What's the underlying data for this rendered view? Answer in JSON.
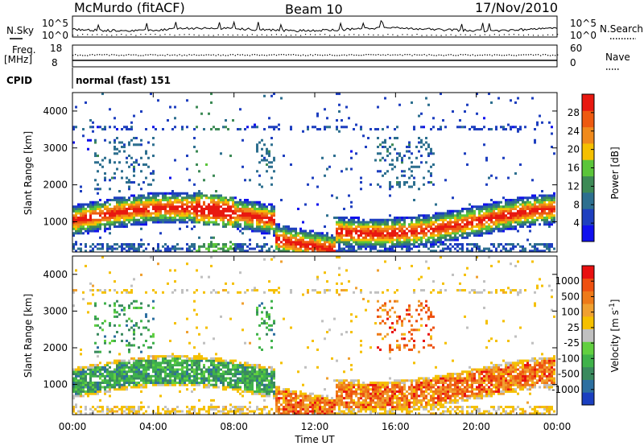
{
  "header": {
    "station": "McMurdo (fitACF)",
    "beam": "Beam 10",
    "date": "17/Nov/2010"
  },
  "top_panels": {
    "nsky_label": "N.Sky",
    "nsearch_label": "N.Search",
    "freq_label_1": "Freq.",
    "freq_label_2": "[MHz]",
    "nave_label": "Nave",
    "cpid_label": "CPID",
    "cpid_value": "normal (fast) 151",
    "noise_ticks": [
      "10^5",
      "10^0"
    ],
    "noise_right_ticks": [
      "10^5",
      "10^0"
    ],
    "freq_ticks": [
      "18",
      "8"
    ],
    "nave_ticks": [
      "60",
      "0"
    ]
  },
  "chart_data": [
    {
      "type": "heatmap",
      "name": "power",
      "ylabel": "Slant Range [km]",
      "xlabel": "Time UT",
      "ylim": [
        180,
        4500
      ],
      "yticks": [
        "1000",
        "2000",
        "3000",
        "4000"
      ],
      "xticks": [
        "00:00",
        "04:00",
        "08:00",
        "12:00",
        "16:00",
        "20:00",
        "00:00"
      ],
      "colorbar_label": "Power [dB]",
      "colorbar_ticks": [
        "28",
        "24",
        "20",
        "16",
        "12",
        "8",
        "4"
      ],
      "colors": [
        "#1010ee",
        "#1e3fbf",
        "#2d6f8f",
        "#3d8a56",
        "#5bc53a",
        "#f5c000",
        "#f08a1c",
        "#ee5a10",
        "#e81810"
      ]
    },
    {
      "type": "heatmap",
      "name": "velocity",
      "ylabel": "Slant Range [km]",
      "xlabel": "Time UT",
      "ylim": [
        180,
        4500
      ],
      "yticks": [
        "1000",
        "2000",
        "3000",
        "4000"
      ],
      "xticks": [
        "00:00",
        "04:00",
        "08:00",
        "12:00",
        "16:00",
        "20:00",
        "00:00"
      ],
      "colorbar_label": "Velocity [m s^-1]",
      "colorbar_ticks": [
        "1000",
        "500",
        "100",
        "25",
        "-25",
        "-100",
        "-500",
        "-1000"
      ],
      "colors": [
        "#1a3fc0",
        "#2c6fa0",
        "#3a8a5e",
        "#3fb24a",
        "#62d040",
        "#c0c0c0",
        "#f5c000",
        "#f0a030",
        "#ee7a18",
        "#ee5010",
        "#e81010"
      ]
    }
  ],
  "time_axis_label": "Time UT"
}
